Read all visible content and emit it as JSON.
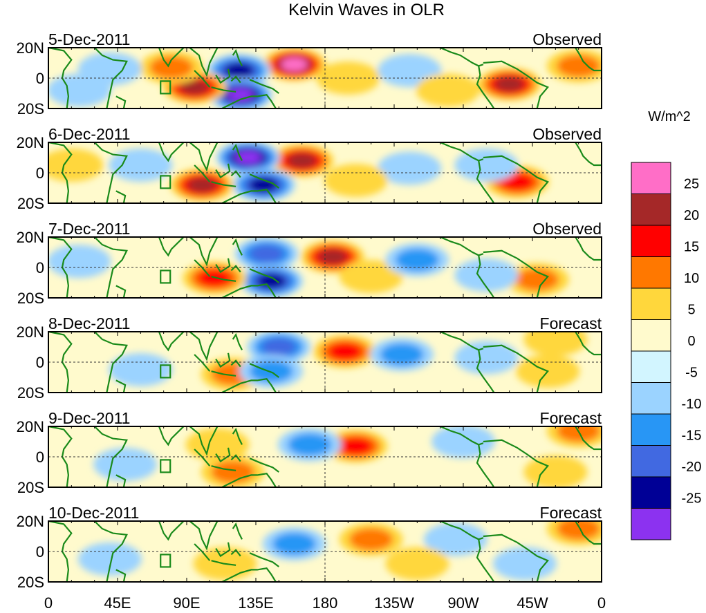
{
  "chart_data": {
    "type": "heatmap",
    "title": "Kelvin Waves in OLR",
    "units": "W/m^2",
    "x_ticks": [
      "0",
      "45E",
      "90E",
      "135E",
      "180",
      "135W",
      "90W",
      "45W",
      "0"
    ],
    "x_tick_lon": [
      0,
      45,
      90,
      135,
      180,
      225,
      270,
      315,
      360
    ],
    "y_ticks": [
      "20N",
      "0",
      "20S"
    ],
    "y_tick_lat": [
      20,
      0,
      -20
    ],
    "lon_range": [
      0,
      360
    ],
    "lat_range": [
      -20,
      20
    ],
    "colorbar": {
      "labels": [
        "25",
        "20",
        "15",
        "10",
        "5",
        "0",
        "-5",
        "-10",
        "-15",
        "-20",
        "-25"
      ],
      "levels": [
        25,
        20,
        15,
        10,
        5,
        0,
        -5,
        -10,
        -15,
        -20,
        -25
      ],
      "colors": [
        "#ff6ec7",
        "#a52828",
        "#ff0000",
        "#ff7800",
        "#ffd73c",
        "#fffacd",
        "#d2f5ff",
        "#9bd3ff",
        "#2896f5",
        "#4169e1",
        "#000096",
        "#8c32f0"
      ]
    },
    "panels": [
      {
        "date": "5-Dec-2011",
        "label": "Observed",
        "anomalies": [
          {
            "lon": 160,
            "lat": 9,
            "value": 27
          },
          {
            "lon": 124,
            "lat": 5,
            "value": -22
          },
          {
            "lon": 125,
            "lat": -11,
            "value": -27
          },
          {
            "lon": 95,
            "lat": -6,
            "value": 23
          },
          {
            "lon": 300,
            "lat": -4,
            "value": 20
          },
          {
            "lon": 345,
            "lat": 8,
            "value": 14
          },
          {
            "lon": 80,
            "lat": 7,
            "value": 10
          },
          {
            "lon": 195,
            "lat": 0,
            "value": 6
          },
          {
            "lon": 235,
            "lat": 5,
            "value": -9
          },
          {
            "lon": 40,
            "lat": 6,
            "value": -7
          },
          {
            "lon": 20,
            "lat": -8,
            "value": -8
          },
          {
            "lon": 260,
            "lat": -8,
            "value": 6
          }
        ]
      },
      {
        "date": "6-Dec-2011",
        "label": "Observed",
        "anomalies": [
          {
            "lon": 165,
            "lat": 8,
            "value": 23
          },
          {
            "lon": 130,
            "lat": 10,
            "value": -25
          },
          {
            "lon": 140,
            "lat": -8,
            "value": -24
          },
          {
            "lon": 100,
            "lat": -8,
            "value": 22
          },
          {
            "lon": 305,
            "lat": -6,
            "value": 17
          },
          {
            "lon": 15,
            "lat": 5,
            "value": 9
          },
          {
            "lon": 235,
            "lat": 3,
            "value": -8
          },
          {
            "lon": 200,
            "lat": -5,
            "value": 7
          },
          {
            "lon": 60,
            "lat": 5,
            "value": -6
          },
          {
            "lon": 285,
            "lat": 5,
            "value": -7
          }
        ]
      },
      {
        "date": "7-Dec-2011",
        "label": "Observed",
        "anomalies": [
          {
            "lon": 185,
            "lat": 7,
            "value": 21
          },
          {
            "lon": 142,
            "lat": 9,
            "value": -18
          },
          {
            "lon": 145,
            "lat": -9,
            "value": -22
          },
          {
            "lon": 108,
            "lat": -7,
            "value": 17
          },
          {
            "lon": 318,
            "lat": -8,
            "value": 12
          },
          {
            "lon": 210,
            "lat": -6,
            "value": 9
          },
          {
            "lon": 240,
            "lat": 5,
            "value": -10
          },
          {
            "lon": 20,
            "lat": 4,
            "value": -8
          },
          {
            "lon": 285,
            "lat": -5,
            "value": -9
          }
        ]
      },
      {
        "date": "8-Dec-2011",
        "label": "Forecast",
        "anomalies": [
          {
            "lon": 193,
            "lat": 7,
            "value": 17
          },
          {
            "lon": 150,
            "lat": 10,
            "value": -15
          },
          {
            "lon": 120,
            "lat": -8,
            "value": 12
          },
          {
            "lon": 145,
            "lat": -6,
            "value": -14
          },
          {
            "lon": 325,
            "lat": -6,
            "value": 9
          },
          {
            "lon": 330,
            "lat": 15,
            "value": 8
          },
          {
            "lon": 230,
            "lat": 5,
            "value": -10
          },
          {
            "lon": 60,
            "lat": -5,
            "value": -6
          },
          {
            "lon": 285,
            "lat": 3,
            "value": -8
          }
        ]
      },
      {
        "date": "9-Dec-2011",
        "label": "Forecast",
        "anomalies": [
          {
            "lon": 200,
            "lat": 7,
            "value": 15
          },
          {
            "lon": 120,
            "lat": -10,
            "value": 10
          },
          {
            "lon": 170,
            "lat": 8,
            "value": -10
          },
          {
            "lon": 270,
            "lat": 10,
            "value": -8
          },
          {
            "lon": 330,
            "lat": -10,
            "value": 8
          },
          {
            "lon": 345,
            "lat": 17,
            "value": 12
          },
          {
            "lon": 50,
            "lat": -5,
            "value": -6
          },
          {
            "lon": 110,
            "lat": 8,
            "value": 8
          }
        ]
      },
      {
        "date": "10-Dec-2011",
        "label": "Forecast",
        "anomalies": [
          {
            "lon": 210,
            "lat": 8,
            "value": 13
          },
          {
            "lon": 115,
            "lat": -8,
            "value": 9
          },
          {
            "lon": 160,
            "lat": 5,
            "value": -10
          },
          {
            "lon": 265,
            "lat": 8,
            "value": -7
          },
          {
            "lon": 345,
            "lat": 15,
            "value": 10
          },
          {
            "lon": 240,
            "lat": -8,
            "value": 6
          },
          {
            "lon": 40,
            "lat": -5,
            "value": -6
          },
          {
            "lon": 310,
            "lat": -8,
            "value": -6
          }
        ]
      }
    ]
  }
}
